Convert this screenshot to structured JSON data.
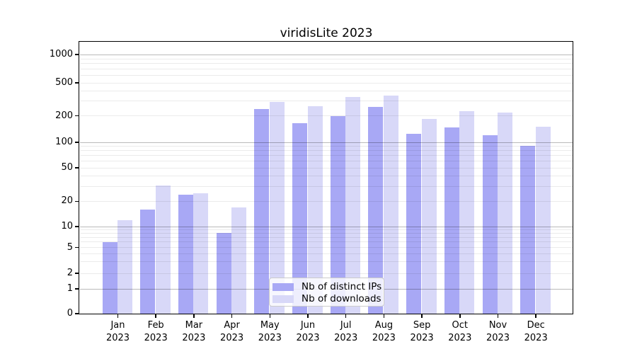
{
  "chart_data": {
    "type": "bar",
    "title": "viridisLite 2023",
    "categories": [
      "Jan 2023",
      "Feb 2023",
      "Mar 2023",
      "Apr 2023",
      "May 2023",
      "Jun 2023",
      "Jul 2023",
      "Aug 2023",
      "Sep 2023",
      "Oct 2023",
      "Nov 2023",
      "Dec 2023"
    ],
    "series": [
      {
        "name": "Nb of distinct IPs",
        "color": "#a8a8f5",
        "values": [
          6,
          16,
          24,
          8,
          240,
          165,
          199,
          258,
          125,
          148,
          120,
          90
        ]
      },
      {
        "name": "Nb of downloads",
        "color": "#d8d8f8",
        "values": [
          12,
          31,
          25,
          17,
          295,
          263,
          336,
          352,
          185,
          226,
          218,
          151
        ]
      }
    ],
    "yscale": "symlog",
    "yticks": [
      0,
      1,
      2,
      5,
      10,
      20,
      50,
      100,
      200,
      500,
      1000
    ],
    "ylim": [
      0,
      1400
    ],
    "xlabel": "",
    "ylabel": "",
    "grid": "horizontal major+minor, drawn over bars",
    "legend_position": "lower center",
    "colors": {
      "background": "#ffffff",
      "spine": "#000000",
      "grid_major": "#b9b9b9",
      "grid_minor": "#ebebeb",
      "legend_border": "#cbcbcb"
    }
  }
}
